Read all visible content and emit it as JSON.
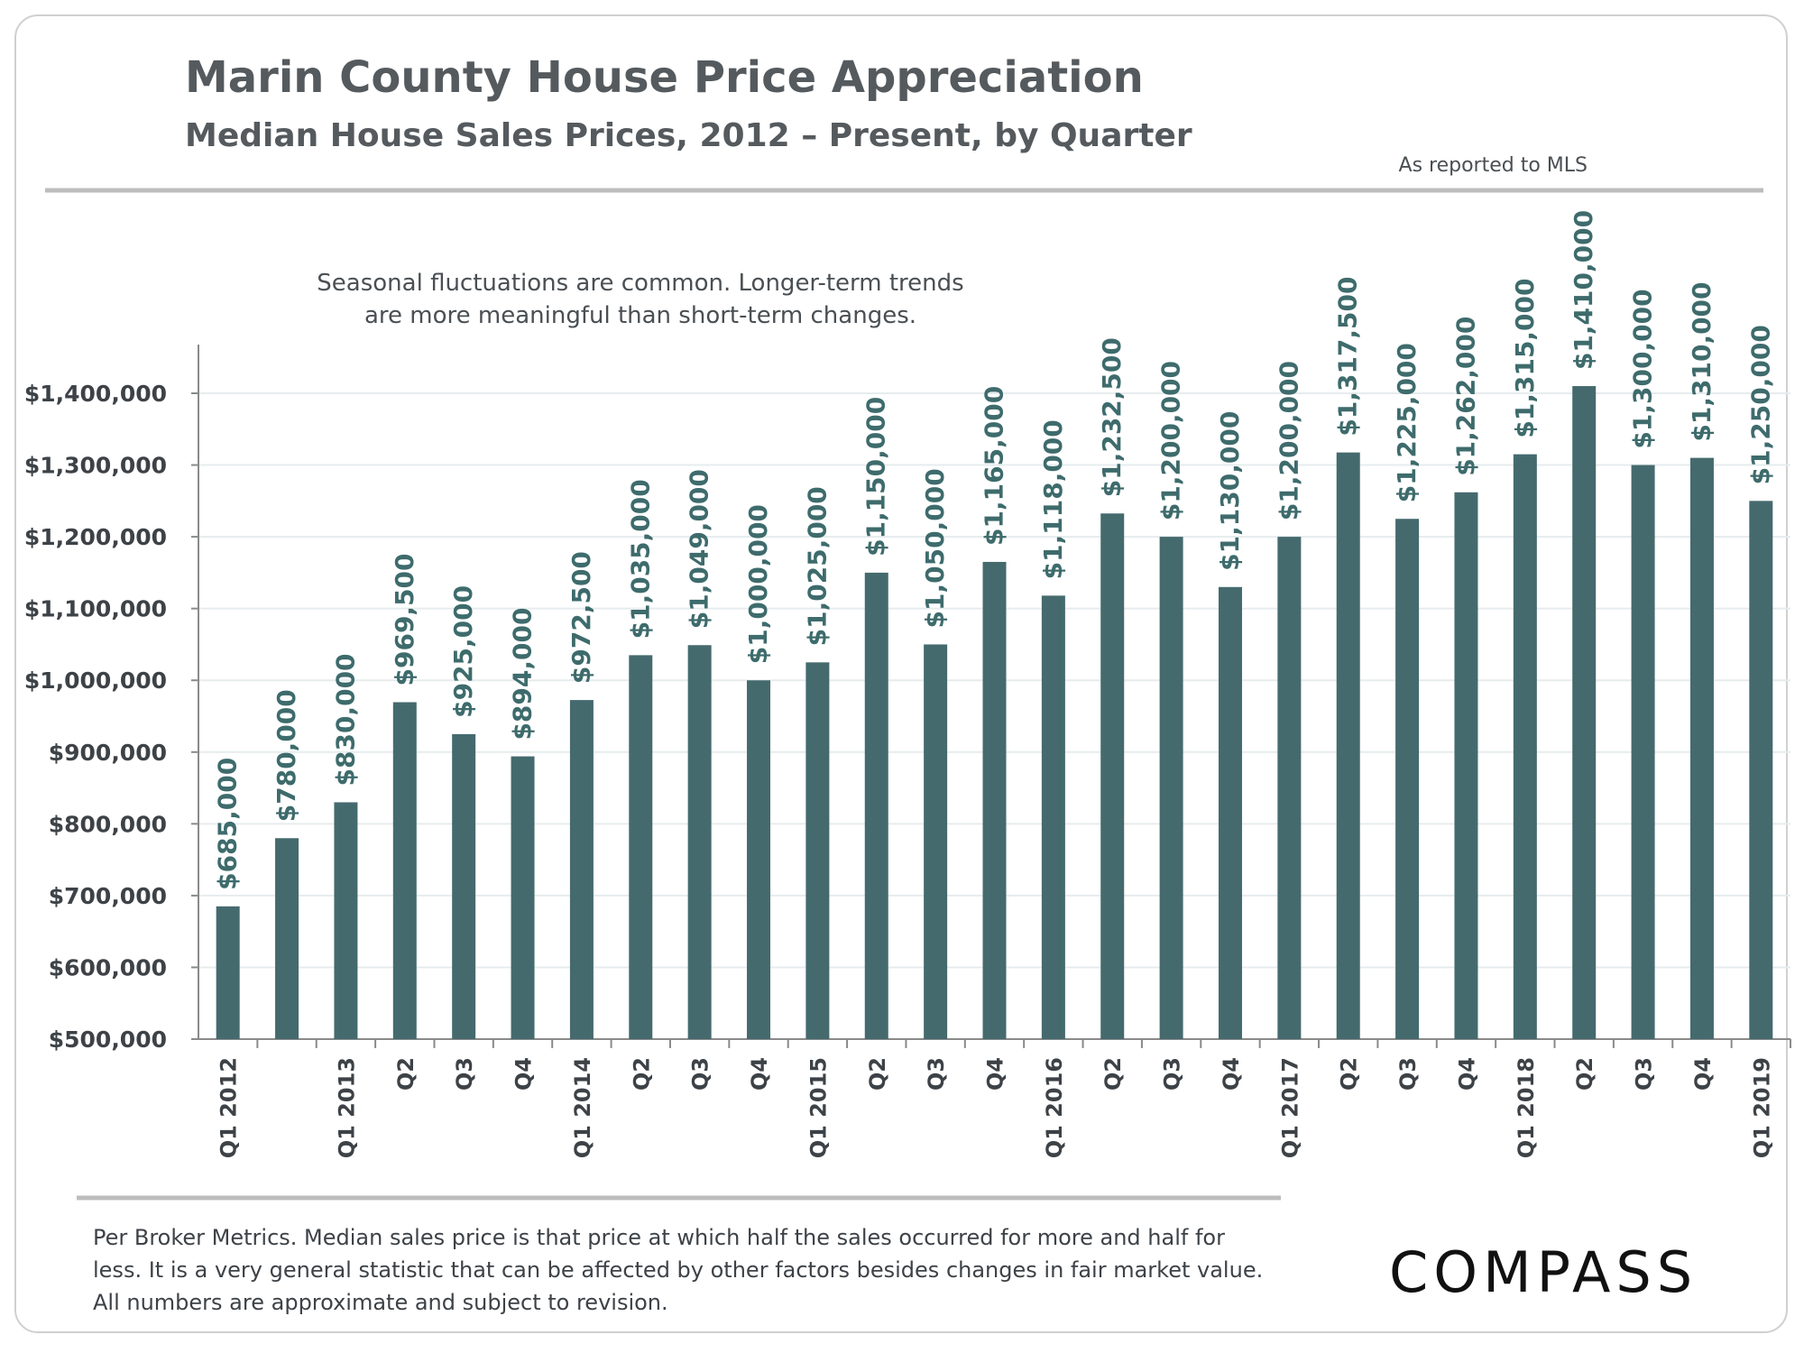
{
  "header": {
    "title": "Marin County House Price Appreciation",
    "subtitle": "Median House Sales Prices, 2012 – Present, by Quarter",
    "source_note": "As reported to MLS"
  },
  "annotation": {
    "line1": "Seasonal fluctuations are common. Longer-term trends",
    "line2": "are more meaningful than short-term changes."
  },
  "footnote": {
    "line1": "Per Broker Metrics. Median sales price is that price at which half the sales occurred for more and half for",
    "line2": "less. It is a very general statistic that can be affected by other factors besides changes in fair market value.",
    "line3": "All numbers are approximate and subject to revision."
  },
  "logo": {
    "text": "COMPASS"
  },
  "colors": {
    "bar": "#456a6e",
    "value_label": "#3e6b6c",
    "rule": "#bdbdbd",
    "grid": "#e6ecee"
  },
  "chart_data": {
    "type": "bar",
    "title": "Marin County House Price Appreciation",
    "subtitle": "Median House Sales Prices, 2012 – Present, by Quarter",
    "xlabel": "",
    "ylabel": "",
    "ylim": [
      500000,
      1400000
    ],
    "grid": true,
    "yticks": [
      500000,
      600000,
      700000,
      800000,
      900000,
      1000000,
      1100000,
      1200000,
      1300000,
      1400000
    ],
    "ytick_labels": [
      "$500,000",
      "$600,000",
      "$700,000",
      "$800,000",
      "$900,000",
      "$1,000,000",
      "$1,100,000",
      "$1,200,000",
      "$1,300,000",
      "$1,400,000"
    ],
    "categories": [
      "Q1 2012",
      "",
      "Q1 2013",
      "Q2",
      "Q3",
      "Q4",
      "Q1 2014",
      "Q2",
      "Q3",
      "Q4",
      "Q1 2015",
      "Q2",
      "Q3",
      "Q4",
      "Q1 2016",
      "Q2",
      "Q3",
      "Q4",
      "Q1 2017",
      "Q2",
      "Q3",
      "Q4",
      "Q1 2018",
      "Q2",
      "Q3",
      "Q4",
      "Q1 2019"
    ],
    "values": [
      685000,
      780000,
      830000,
      969500,
      925000,
      894000,
      972500,
      1035000,
      1049000,
      1000000,
      1025000,
      1150000,
      1050000,
      1165000,
      1118000,
      1232500,
      1200000,
      1130000,
      1200000,
      1317500,
      1225000,
      1262000,
      1315000,
      1410000,
      1300000,
      1310000,
      1250000
    ],
    "value_labels": [
      "$685,000",
      "$780,000",
      "$830,000",
      "$969,500",
      "$925,000",
      "$894,000",
      "$972,500",
      "$1,035,000",
      "$1,049,000",
      "$1,000,000",
      "$1,025,000",
      "$1,150,000",
      "$1,050,000",
      "$1,165,000",
      "$1,118,000",
      "$1,232,500",
      "$1,200,000",
      "$1,130,000",
      "$1,200,000",
      "$1,317,500",
      "$1,225,000",
      "$1,262,000",
      "$1,315,000",
      "$1,410,000",
      "$1,300,000",
      "$1,310,000",
      "$1,250,000"
    ]
  }
}
